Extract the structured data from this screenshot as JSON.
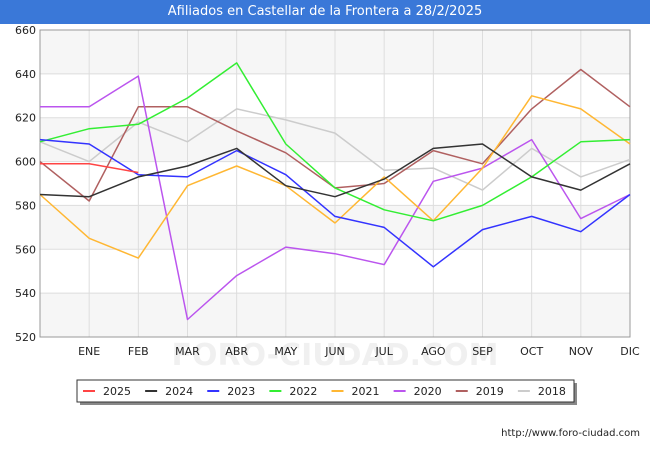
{
  "header": {
    "title": "Afiliados en Castellar de la Frontera a 28/2/2025"
  },
  "footer": {
    "url": "http://www.foro-ciudad.com"
  },
  "watermark": "FORO-CIUDAD.COM",
  "chart_data": {
    "type": "line",
    "title": "Afiliados en Castellar de la Frontera a 28/2/2025",
    "xlabel": "",
    "ylabel": "",
    "categories": [
      "",
      "ENE",
      "FEB",
      "MAR",
      "ABR",
      "MAY",
      "JUN",
      "JUL",
      "AGO",
      "SEP",
      "OCT",
      "NOV",
      "DIC"
    ],
    "ylim": [
      520,
      660
    ],
    "yticks": [
      520,
      540,
      560,
      580,
      600,
      620,
      640,
      660
    ],
    "grid": true,
    "legend_position": "bottom",
    "series": [
      {
        "name": "2025",
        "color": "#ff4444",
        "values": [
          599,
          599,
          595,
          null,
          null,
          null,
          null,
          null,
          null,
          null,
          null,
          null,
          null
        ]
      },
      {
        "name": "2024",
        "color": "#333333",
        "values": [
          585,
          584,
          593,
          598,
          606,
          589,
          584,
          592,
          606,
          608,
          593,
          587,
          599
        ]
      },
      {
        "name": "2023",
        "color": "#3333ff",
        "values": [
          610,
          608,
          594,
          593,
          605,
          594,
          575,
          570,
          552,
          569,
          575,
          568,
          585
        ]
      },
      {
        "name": "2022",
        "color": "#33ee33",
        "values": [
          609,
          615,
          617,
          629,
          645,
          608,
          588,
          578,
          573,
          580,
          593,
          609,
          610
        ]
      },
      {
        "name": "2021",
        "color": "#ffb733",
        "values": [
          585,
          565,
          556,
          589,
          598,
          589,
          572,
          593,
          573,
          597,
          630,
          624,
          608
        ]
      },
      {
        "name": "2020",
        "color": "#bb55ee",
        "values": [
          625,
          625,
          639,
          528,
          548,
          561,
          558,
          553,
          591,
          597,
          610,
          574,
          585
        ]
      },
      {
        "name": "2019",
        "color": "#b06060",
        "values": [
          600,
          582,
          625,
          625,
          614,
          604,
          588,
          590,
          605,
          599,
          624,
          642,
          625
        ]
      },
      {
        "name": "2018",
        "color": "#cccccc",
        "values": [
          609,
          600,
          618,
          609,
          624,
          619,
          613,
          596,
          597,
          587,
          606,
          593,
          601
        ]
      }
    ]
  }
}
